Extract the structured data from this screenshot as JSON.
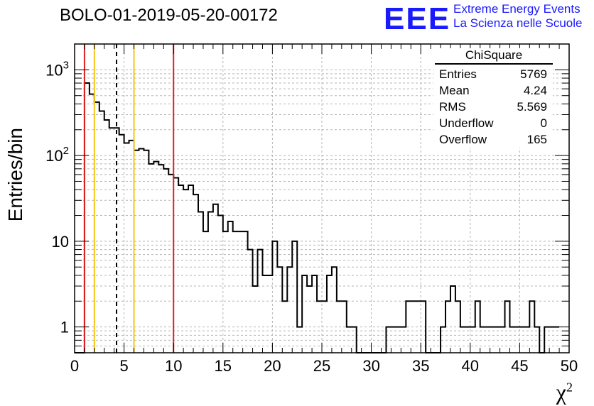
{
  "title": "BOLO-01-2019-05-20-00172",
  "logo": {
    "mark": "EEE",
    "line1": "Extreme Energy Events",
    "line2": "La Scienza nelle Scuole"
  },
  "stats_box": {
    "title": "ChiSquare",
    "rows": [
      {
        "label": "Entries",
        "value": "5769"
      },
      {
        "label": "Mean",
        "value": "4.24"
      },
      {
        "label": "RMS",
        "value": "5.569"
      },
      {
        "label": "Underflow",
        "value": "0"
      },
      {
        "label": "Overflow",
        "value": "165"
      }
    ]
  },
  "chart_data": {
    "type": "histogram",
    "title": "BOLO-01-2019-05-20-00172",
    "xlabel": "χ²",
    "ylabel": "Entries/bin",
    "xlim": [
      0,
      50
    ],
    "ylim": [
      0.5,
      2000
    ],
    "yscale": "log",
    "grid": true,
    "bin_width": 0.5,
    "x_ticks": [
      0,
      5,
      10,
      15,
      20,
      25,
      30,
      35,
      40,
      45,
      50
    ],
    "x_tick_labels": [
      "0",
      "5",
      "10",
      "15",
      "20",
      "25",
      "30",
      "35",
      "40",
      "45",
      "50"
    ],
    "y_ticks": [
      1,
      10,
      100,
      1000
    ],
    "y_tick_labels": [
      "1",
      "10",
      "10²",
      "10³"
    ],
    "counts": [
      0,
      0,
      700,
      520,
      420,
      330,
      260,
      210,
      210,
      175,
      140,
      150,
      115,
      120,
      115,
      80,
      85,
      78,
      70,
      60,
      55,
      45,
      40,
      45,
      35,
      22,
      13,
      22,
      27,
      20,
      13,
      17,
      13,
      13,
      13,
      8,
      3,
      8,
      4,
      4,
      10,
      5,
      2,
      5,
      10,
      1,
      4,
      3,
      4,
      2,
      2,
      4,
      5,
      2,
      2,
      1,
      1,
      0,
      0,
      0,
      0,
      0,
      0,
      1,
      1,
      1,
      1,
      2,
      2,
      2,
      2,
      0,
      0,
      0,
      1,
      2,
      3,
      2,
      1,
      1,
      1,
      2,
      1,
      1,
      1,
      1,
      1,
      2,
      1,
      1,
      1,
      1,
      2,
      1,
      0,
      1,
      1,
      1
    ],
    "vertical_lines": [
      {
        "x": 1,
        "color": "#e02020",
        "style": "solid"
      },
      {
        "x": 2,
        "color": "#f5c518",
        "style": "solid"
      },
      {
        "x": 4.24,
        "color": "#000000",
        "style": "dashed"
      },
      {
        "x": 6,
        "color": "#f5c518",
        "style": "solid"
      },
      {
        "x": 10,
        "color": "#e02020",
        "style": "solid"
      }
    ]
  }
}
